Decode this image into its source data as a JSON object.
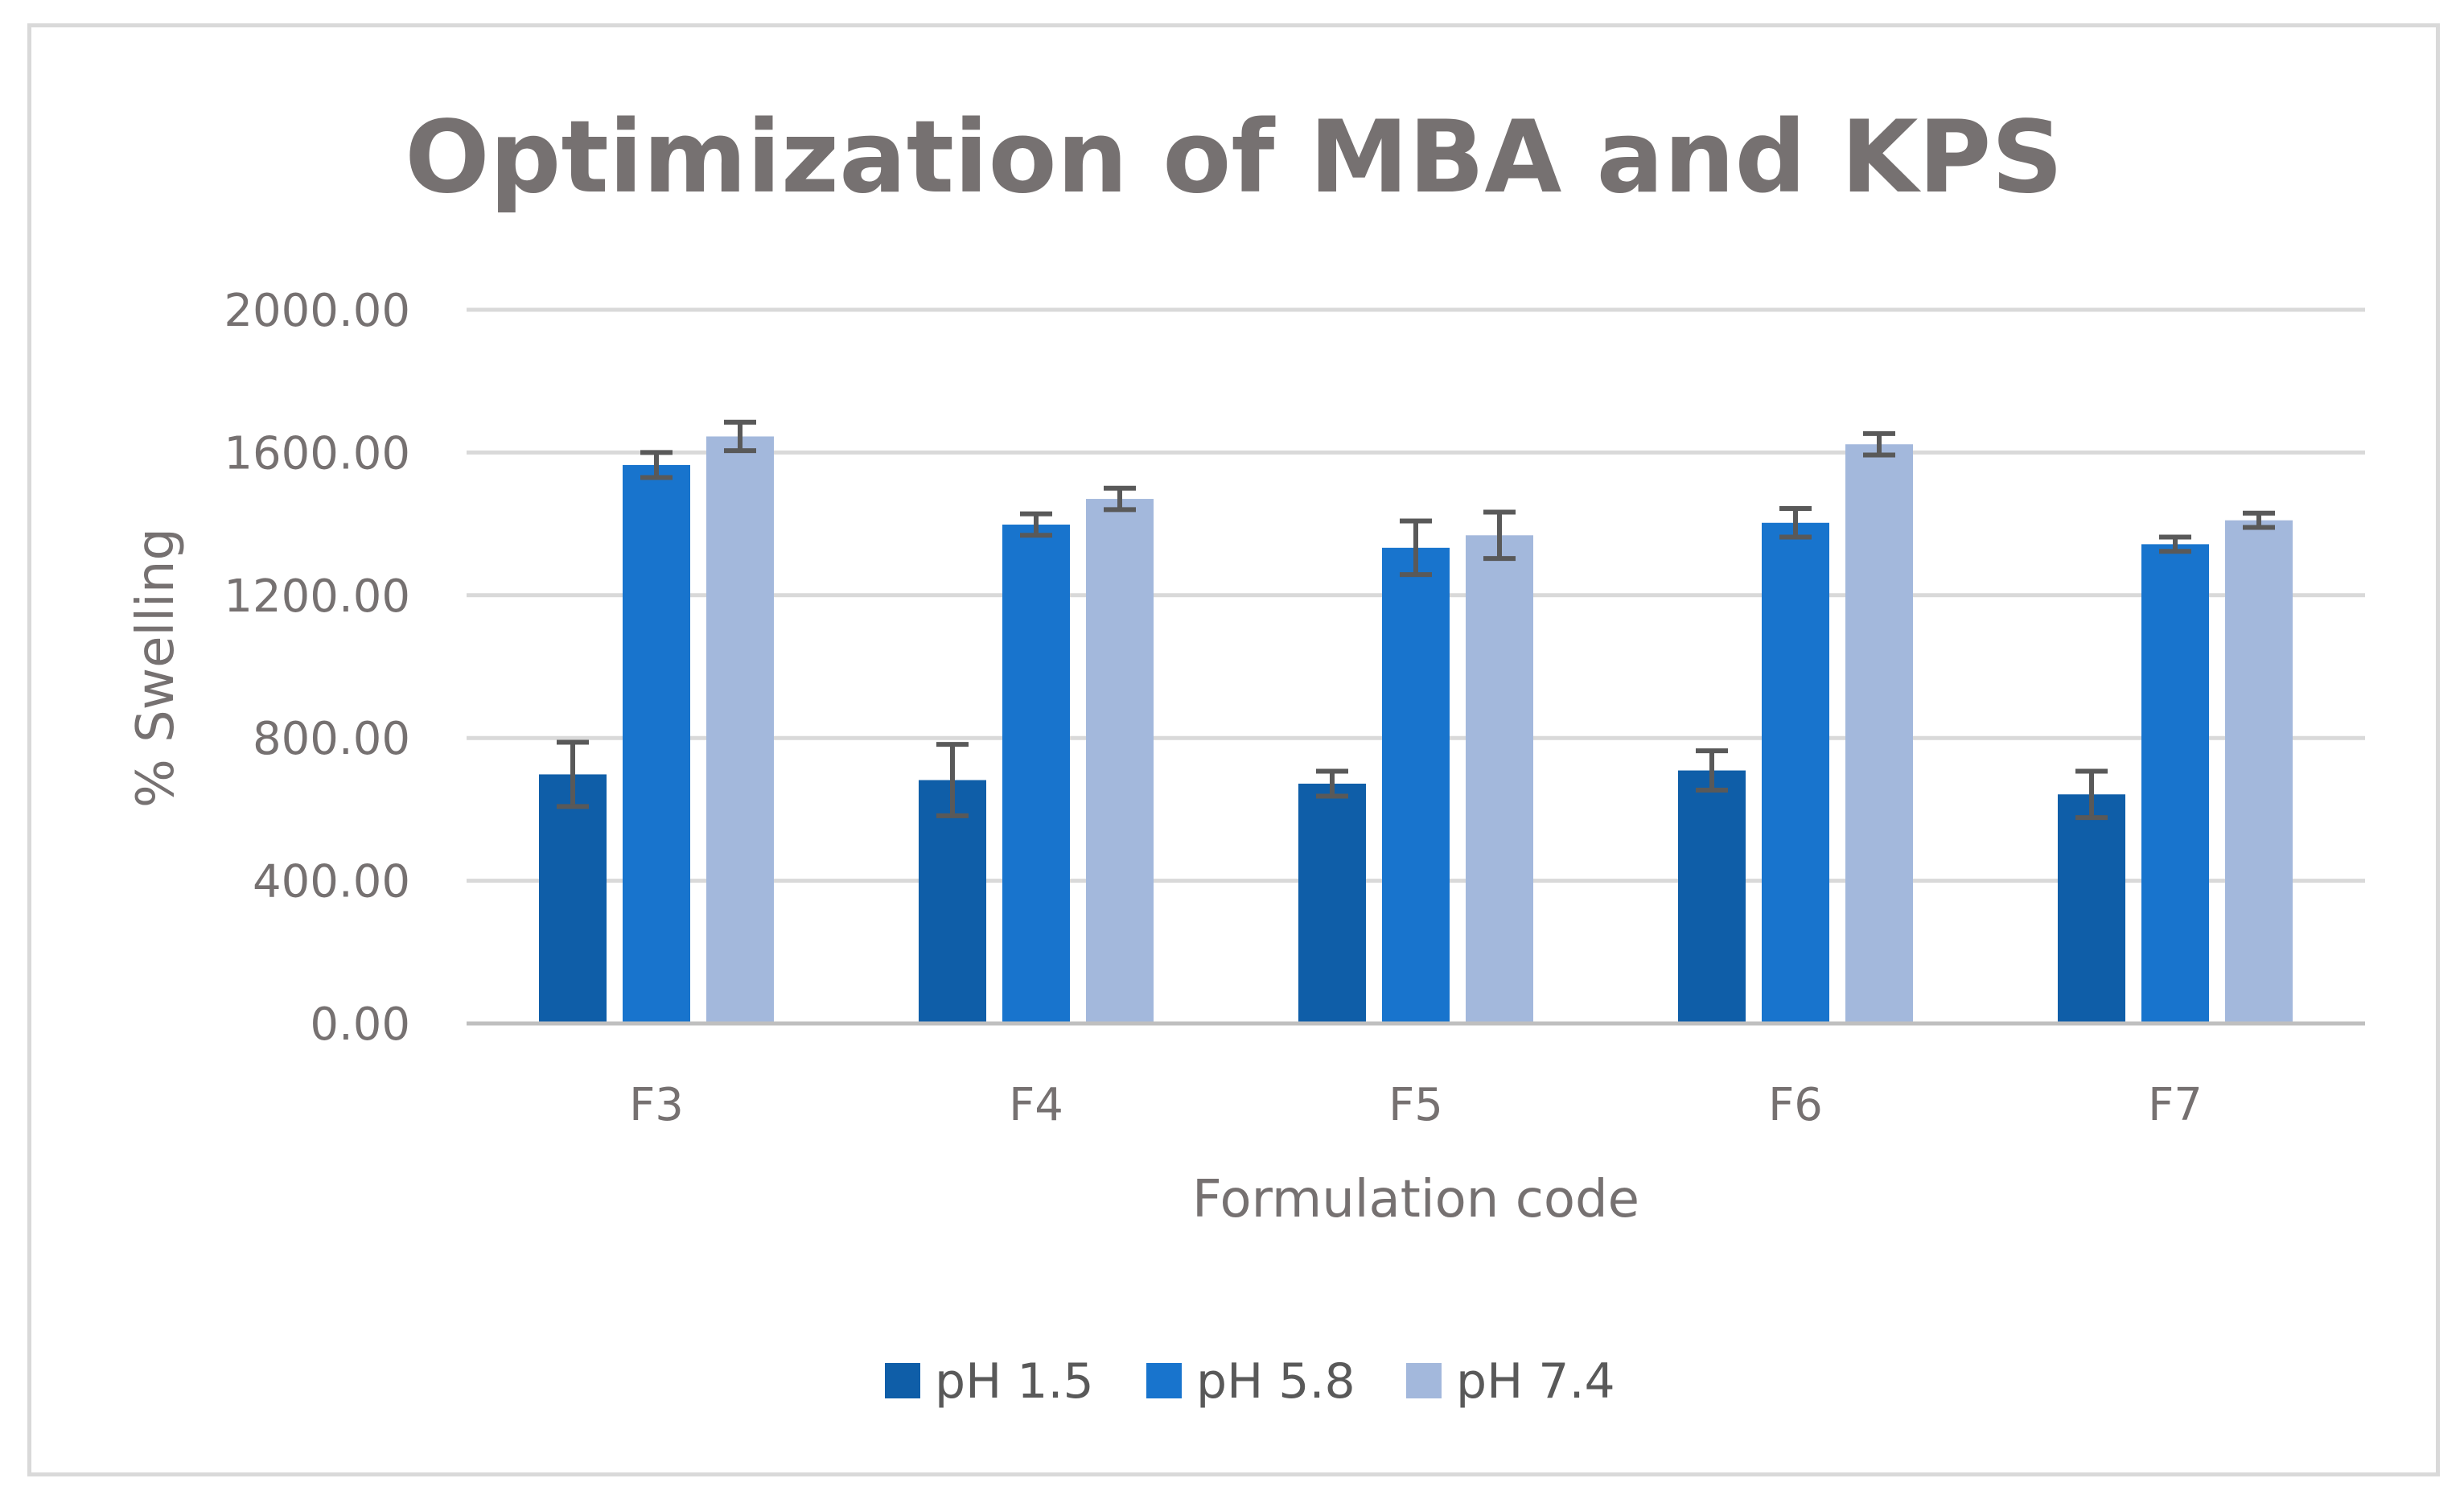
{
  "chart_data": {
    "type": "bar",
    "title": "Optimization of MBA and KPS",
    "xlabel": "Formulation code",
    "ylabel": "% Swelling",
    "categories": [
      "F3",
      "F4",
      "F5",
      "F6",
      "F7"
    ],
    "ylim": [
      0,
      2000
    ],
    "yticks": [
      0,
      400,
      800,
      1200,
      1600,
      2000
    ],
    "ytick_labels": [
      "0.00",
      "400.00",
      "800.00",
      "1200.00",
      "1600.00",
      "2000.00"
    ],
    "grid": true,
    "legend_position": "bottom",
    "series": [
      {
        "name": "pH 1.5",
        "color": "#0f5ea8",
        "values": [
          698,
          682,
          672,
          709,
          642
        ],
        "errors": [
          90,
          100,
          35,
          55,
          65
        ]
      },
      {
        "name": "pH 5.8",
        "color": "#1874cd",
        "values": [
          1565,
          1398,
          1333,
          1403,
          1343
        ],
        "errors": [
          35,
          30,
          75,
          40,
          20
        ]
      },
      {
        "name": "pH 7.4",
        "color": "#a3b8dc",
        "values": [
          1645,
          1470,
          1368,
          1623,
          1410
        ],
        "errors": [
          40,
          30,
          65,
          30,
          20
        ]
      }
    ]
  }
}
